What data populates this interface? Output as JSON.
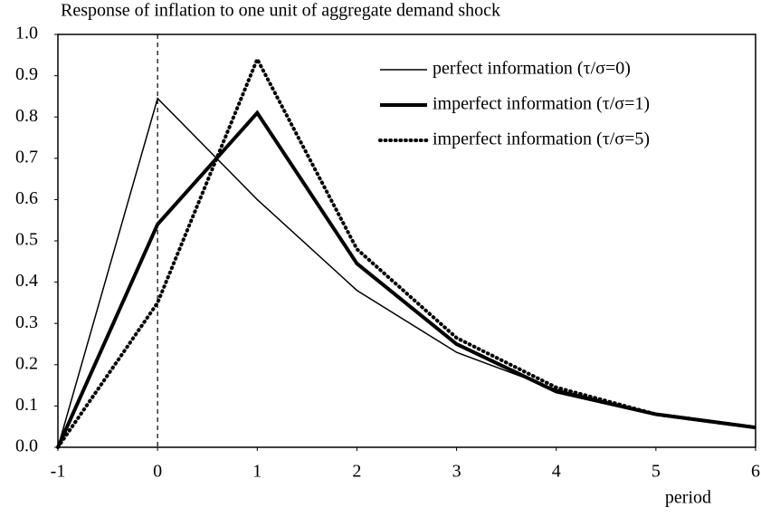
{
  "chart_data": {
    "type": "line",
    "title": "Response of inflation to one unit of aggregate demand shock",
    "x_label": "period",
    "x": [
      -1,
      0,
      1,
      2,
      3,
      4,
      5,
      6
    ],
    "series": [
      {
        "name": "perfect information (τ/σ=0)",
        "color": "#000000",
        "width": 1.5,
        "dash": "solid",
        "values": [
          0,
          0.845,
          0.6,
          0.38,
          0.23,
          0.14,
          0.08,
          0.048
        ]
      },
      {
        "name": "imperfect information (τ/σ=1)",
        "color": "#000000",
        "width": 4,
        "dash": "solid",
        "values": [
          0,
          0.54,
          0.81,
          0.445,
          0.25,
          0.135,
          0.08,
          0.048
        ]
      },
      {
        "name": "imperfect information (τ/σ=5)",
        "color": "#000000",
        "width": 4,
        "dash": "dotted",
        "values": [
          0,
          0.35,
          0.94,
          0.48,
          0.265,
          0.145,
          0.08,
          0.048
        ]
      }
    ],
    "xlim": [
      -1,
      6
    ],
    "xticks": [
      -1,
      0,
      1,
      2,
      3,
      4,
      5,
      6
    ],
    "ylim": [
      0,
      1
    ],
    "yticks": [
      {
        "value": 0,
        "label": "0.0"
      },
      0.1,
      0.2,
      0.3,
      0.4,
      0.5,
      0.6,
      0.7,
      0.8,
      0.9,
      {
        "value": 1,
        "label": "1.0"
      }
    ],
    "vline_x": 0,
    "grid": false,
    "legend": "upper right"
  }
}
